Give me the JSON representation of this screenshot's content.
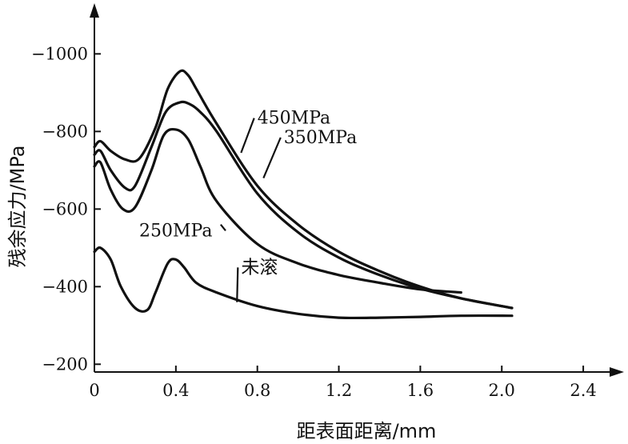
{
  "chart_data": {
    "type": "line",
    "xlabel": "距表面距离/mm",
    "ylabel": "残余应力/MPa",
    "xlim": [
      0,
      2.6
    ],
    "ylim": [
      -180,
      -1110
    ],
    "x_ticks": [
      {
        "value": 0,
        "label": "0"
      },
      {
        "value": 0.4,
        "label": "0.4"
      },
      {
        "value": 0.8,
        "label": "0.8"
      },
      {
        "value": 1.2,
        "label": "1.2"
      },
      {
        "value": 1.6,
        "label": "1.6"
      },
      {
        "value": 2.0,
        "label": "2.0"
      },
      {
        "value": 2.4,
        "label": "2.4"
      }
    ],
    "y_ticks": [
      {
        "value": -200,
        "label": "−200"
      },
      {
        "value": -400,
        "label": "−400"
      },
      {
        "value": -600,
        "label": "−600"
      },
      {
        "value": -800,
        "label": "−800"
      },
      {
        "value": -1000,
        "label": "−1000"
      }
    ],
    "series": [
      {
        "name": "450MPa",
        "x": [
          0,
          0.03,
          0.08,
          0.15,
          0.22,
          0.3,
          0.36,
          0.42,
          0.46,
          0.5,
          0.6,
          0.8,
          1.0,
          1.2,
          1.4,
          1.6,
          1.8,
          2.05
        ],
        "y": [
          -760,
          -775,
          -750,
          -728,
          -730,
          -810,
          -910,
          -955,
          -945,
          -910,
          -820,
          -660,
          -560,
          -490,
          -440,
          -400,
          -370,
          -345
        ],
        "label_x": 0.8,
        "label_y": -820,
        "anchor_x": 0.72,
        "anchor_y": -745
      },
      {
        "name": "350MPa",
        "x": [
          0,
          0.03,
          0.08,
          0.15,
          0.2,
          0.28,
          0.35,
          0.42,
          0.47,
          0.52,
          0.6,
          0.8,
          1.0,
          1.2,
          1.4,
          1.6,
          1.8,
          2.05
        ],
        "y": [
          -740,
          -750,
          -700,
          -655,
          -660,
          -760,
          -850,
          -875,
          -870,
          -850,
          -800,
          -640,
          -540,
          -475,
          -430,
          -395,
          -370,
          -345
        ],
        "label_x": 0.93,
        "label_y": -770,
        "anchor_x": 0.83,
        "anchor_y": -680
      },
      {
        "name": "250MPa",
        "x": [
          0,
          0.03,
          0.08,
          0.14,
          0.2,
          0.28,
          0.34,
          0.4,
          0.46,
          0.52,
          0.6,
          0.8,
          1.0,
          1.2,
          1.4,
          1.6,
          1.8
        ],
        "y": [
          -710,
          -720,
          -650,
          -600,
          -605,
          -700,
          -790,
          -805,
          -780,
          -710,
          -620,
          -510,
          -460,
          -430,
          -410,
          -393,
          -385
        ],
        "label_x": 0.22,
        "label_y": -530,
        "anchor_x": 0.62,
        "anchor_y": -560
      },
      {
        "name": "未滚",
        "x": [
          0,
          0.03,
          0.08,
          0.13,
          0.2,
          0.26,
          0.3,
          0.36,
          0.4,
          0.44,
          0.5,
          0.6,
          0.8,
          1.0,
          1.2,
          1.4,
          1.6,
          1.8,
          2.05
        ],
        "y": [
          -490,
          -500,
          -470,
          -400,
          -345,
          -340,
          -385,
          -460,
          -470,
          -450,
          -410,
          -385,
          -350,
          -330,
          -320,
          -320,
          -322,
          -325,
          -325
        ],
        "label_x": 0.72,
        "label_y": -435,
        "anchor_x": 0.7,
        "anchor_y": -360
      }
    ]
  }
}
